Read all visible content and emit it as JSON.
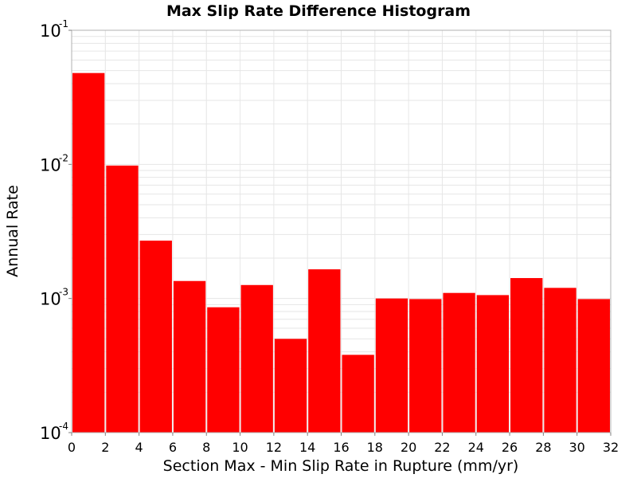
{
  "chart_data": {
    "type": "bar",
    "title": "Max Slip Rate Difference Histogram",
    "xlabel": "Section Max - Min Slip Rate in Rupture (mm/yr)",
    "ylabel": "Annual Rate",
    "yscale": "log",
    "xlim": [
      0,
      32
    ],
    "ylim": [
      0.0001,
      0.1
    ],
    "x_ticks": [
      "0",
      "2",
      "4",
      "6",
      "8",
      "10",
      "12",
      "14",
      "16",
      "18",
      "20",
      "22",
      "24",
      "26",
      "28",
      "30",
      "32"
    ],
    "y_ticks": [
      {
        "base": "10",
        "exp": "-4",
        "value": 0.0001
      },
      {
        "base": "10",
        "exp": "-3",
        "value": 0.001
      },
      {
        "base": "10",
        "exp": "-2",
        "value": 0.01
      },
      {
        "base": "10",
        "exp": "-1",
        "value": 0.1
      }
    ],
    "bin_width": 2,
    "bins": [
      {
        "x0": 0,
        "value": 0.048
      },
      {
        "x0": 2,
        "value": 0.0098
      },
      {
        "x0": 4,
        "value": 0.0027
      },
      {
        "x0": 6,
        "value": 0.00135
      },
      {
        "x0": 8,
        "value": 0.00086
      },
      {
        "x0": 10,
        "value": 0.00126
      },
      {
        "x0": 12,
        "value": 0.0005
      },
      {
        "x0": 14,
        "value": 0.00165
      },
      {
        "x0": 16,
        "value": 0.00038
      },
      {
        "x0": 18,
        "value": 0.001
      },
      {
        "x0": 20,
        "value": 0.00099
      },
      {
        "x0": 22,
        "value": 0.0011
      },
      {
        "x0": 24,
        "value": 0.00106
      },
      {
        "x0": 26,
        "value": 0.00142
      },
      {
        "x0": 28,
        "value": 0.0012
      },
      {
        "x0": 30,
        "value": 0.00099
      }
    ],
    "bar_color": "#ff0000",
    "grid": true,
    "grid_color": "#e6e6e6",
    "legend": "none"
  }
}
